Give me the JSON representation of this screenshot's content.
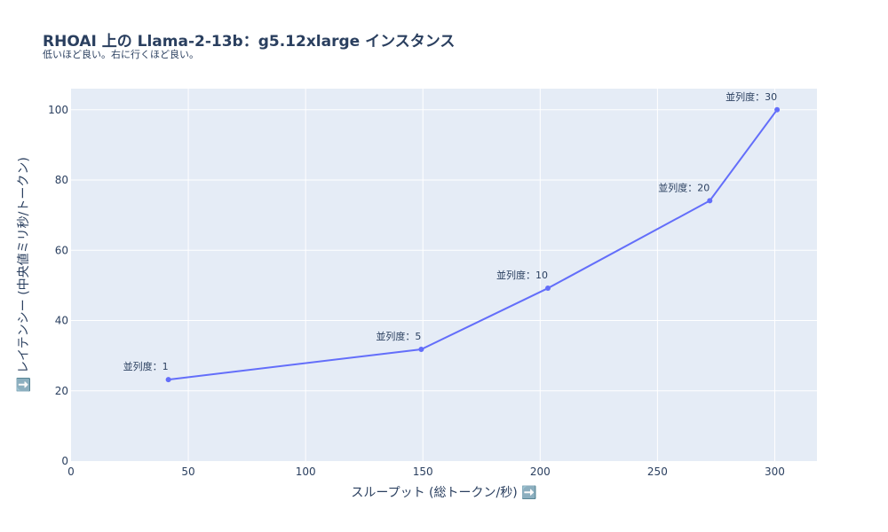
{
  "title": "RHOAI 上の Llama-2-13b：g5.12xlarge インスタンス",
  "subtitle": "低いほど良い。右に行くほど良い。",
  "chart_data": {
    "type": "line",
    "xlabel": "スループット (総トークン/秒) ➡️",
    "ylabel": "⬇️ レイテンシー (中央値ミリ秒/トークン)",
    "xlim": [
      0,
      318
    ],
    "ylim": [
      0,
      106
    ],
    "xticks": [
      0,
      50,
      100,
      150,
      200,
      250,
      300
    ],
    "yticks": [
      0,
      20,
      40,
      60,
      80,
      100
    ],
    "grid": true,
    "colors": {
      "line": "#636efa",
      "plot_bg": "#e5ecf6",
      "grid": "#ffffff",
      "text": "#2a3f5f"
    },
    "series": [
      {
        "x": [
          41.5,
          149.3,
          203.3,
          272.3,
          301.0
        ],
        "y": [
          23.2,
          31.8,
          49.2,
          74.1,
          100.0
        ],
        "labels": [
          "並列度：1",
          "並列度：5",
          "並列度：10",
          "並列度：20",
          "並列度：30"
        ]
      }
    ]
  }
}
